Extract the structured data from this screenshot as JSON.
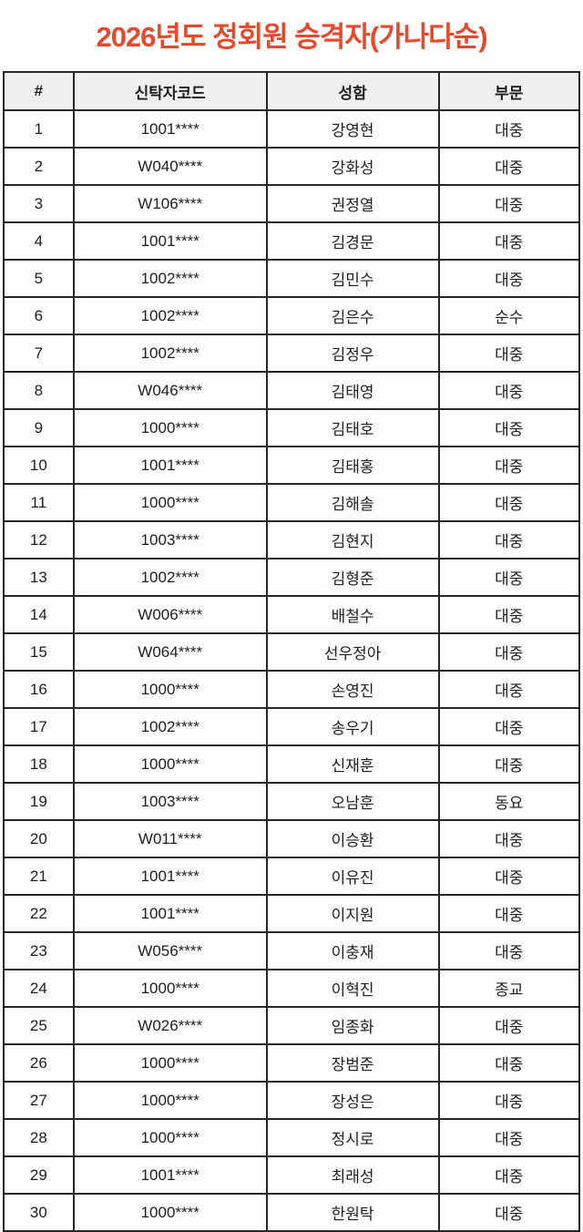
{
  "title": "2026년도 정회원 승격자(가나다순)",
  "accent_color": "#e64a2d",
  "table": {
    "headers": [
      "#",
      "신탁자코드",
      "성함",
      "부문"
    ],
    "rows": [
      {
        "no": "1",
        "code": "1001****",
        "name": "강영현",
        "category": "대중"
      },
      {
        "no": "2",
        "code": "W040****",
        "name": "강화성",
        "category": "대중"
      },
      {
        "no": "3",
        "code": "W106****",
        "name": "권정열",
        "category": "대중"
      },
      {
        "no": "4",
        "code": "1001****",
        "name": "김경문",
        "category": "대중"
      },
      {
        "no": "5",
        "code": "1002****",
        "name": "김민수",
        "category": "대중"
      },
      {
        "no": "6",
        "code": "1002****",
        "name": "김은수",
        "category": "순수"
      },
      {
        "no": "7",
        "code": "1002****",
        "name": "김정우",
        "category": "대중"
      },
      {
        "no": "8",
        "code": "W046****",
        "name": "김태영",
        "category": "대중"
      },
      {
        "no": "9",
        "code": "1000****",
        "name": "김태호",
        "category": "대중"
      },
      {
        "no": "10",
        "code": "1001****",
        "name": "김태홍",
        "category": "대중"
      },
      {
        "no": "11",
        "code": "1000****",
        "name": "김해솔",
        "category": "대중"
      },
      {
        "no": "12",
        "code": "1003****",
        "name": "김현지",
        "category": "대중"
      },
      {
        "no": "13",
        "code": "1002****",
        "name": "김형준",
        "category": "대중"
      },
      {
        "no": "14",
        "code": "W006****",
        "name": "배철수",
        "category": "대중"
      },
      {
        "no": "15",
        "code": "W064****",
        "name": "선우정아",
        "category": "대중"
      },
      {
        "no": "16",
        "code": "1000****",
        "name": "손영진",
        "category": "대중"
      },
      {
        "no": "17",
        "code": "1002****",
        "name": "송우기",
        "category": "대중"
      },
      {
        "no": "18",
        "code": "1000****",
        "name": "신재훈",
        "category": "대중"
      },
      {
        "no": "19",
        "code": "1003****",
        "name": "오남훈",
        "category": "동요"
      },
      {
        "no": "20",
        "code": "W011****",
        "name": "이승환",
        "category": "대중"
      },
      {
        "no": "21",
        "code": "1001****",
        "name": "이유진",
        "category": "대중"
      },
      {
        "no": "22",
        "code": "1001****",
        "name": "이지원",
        "category": "대중"
      },
      {
        "no": "23",
        "code": "W056****",
        "name": "이충재",
        "category": "대중"
      },
      {
        "no": "24",
        "code": "1000****",
        "name": "이혁진",
        "category": "종교"
      },
      {
        "no": "25",
        "code": "W026****",
        "name": "임종화",
        "category": "대중"
      },
      {
        "no": "26",
        "code": "1000****",
        "name": "장범준",
        "category": "대중"
      },
      {
        "no": "27",
        "code": "1000****",
        "name": "장성은",
        "category": "대중"
      },
      {
        "no": "28",
        "code": "1000****",
        "name": "정시로",
        "category": "대중"
      },
      {
        "no": "29",
        "code": "1001****",
        "name": "최래성",
        "category": "대중"
      },
      {
        "no": "30",
        "code": "1000****",
        "name": "한원탁",
        "category": "대중"
      }
    ]
  }
}
